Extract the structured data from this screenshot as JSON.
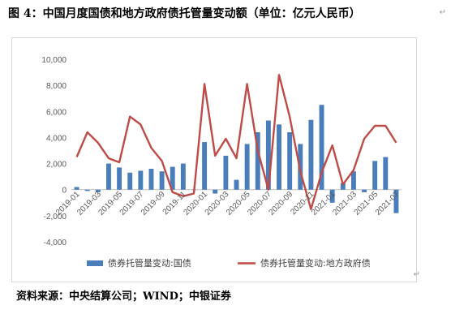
{
  "caption": {
    "label": "图 4：",
    "text": "中国月度国债和地方政府债托管量变动额（单位：亿元人民币）",
    "mark": "↵"
  },
  "source": {
    "text": "资料来源：中央结算公司；WIND；中银证券",
    "mark": "↵"
  },
  "chart_return_mark": "↵",
  "chart_data": {
    "type": "bar",
    "x": [
      "2019-01",
      "2019-02",
      "2019-03",
      "2019-04",
      "2019-05",
      "2019-06",
      "2019-07",
      "2019-08",
      "2019-09",
      "2019-10",
      "2019-11",
      "2019-12",
      "2020-01",
      "2020-02",
      "2020-03",
      "2020-04",
      "2020-05",
      "2020-06",
      "2020-07",
      "2020-08",
      "2020-09",
      "2020-10",
      "2020-11",
      "2020-12",
      "2021-01",
      "2021-02",
      "2021-03",
      "2021-04",
      "2021-05",
      "2021-06",
      "2021-07"
    ],
    "tick_labels": [
      "2019-01",
      "2019-03",
      "2019-05",
      "2019-07",
      "2019-09",
      "2019-11",
      "2020-01",
      "2020-03",
      "2020-05",
      "2020-07",
      "2020-09",
      "2020-11",
      "2021-01",
      "2021-03",
      "2021-05",
      "2021-07"
    ],
    "series": [
      {
        "name": "债券托管量变动:国债",
        "kind": "bar",
        "color": "#4a7ebb",
        "values": [
          200,
          -100,
          -200,
          2000,
          1700,
          1300,
          1450,
          1600,
          1400,
          1750,
          2000,
          0,
          3650,
          -300,
          2600,
          750,
          3500,
          4400,
          5300,
          5000,
          4400,
          3500,
          5350,
          6500,
          -1000,
          500,
          1400,
          -200,
          2200,
          2500,
          -1800
        ]
      },
      {
        "name": "债券托管量变动:地方政府债",
        "kind": "line",
        "color": "#be4b48",
        "values": [
          2500,
          4400,
          3600,
          2400,
          2100,
          5600,
          5000,
          3200,
          2200,
          -200,
          -500,
          -300,
          8100,
          2600,
          3900,
          2400,
          8100,
          3000,
          0,
          8800,
          5600,
          1400,
          -1500,
          1300,
          3400,
          400,
          1500,
          3900,
          4900,
          4900,
          3600
        ]
      }
    ],
    "ylim": [
      -4000,
      10000
    ],
    "yticks": [
      -4000,
      -2000,
      0,
      2000,
      4000,
      6000,
      8000,
      10000
    ],
    "ytick_labels": [
      "-4,000",
      "-2,000",
      "0",
      "2,000",
      "4,000",
      "6,000",
      "8,000",
      "10,000"
    ],
    "grid": false,
    "legend": "bottom"
  }
}
